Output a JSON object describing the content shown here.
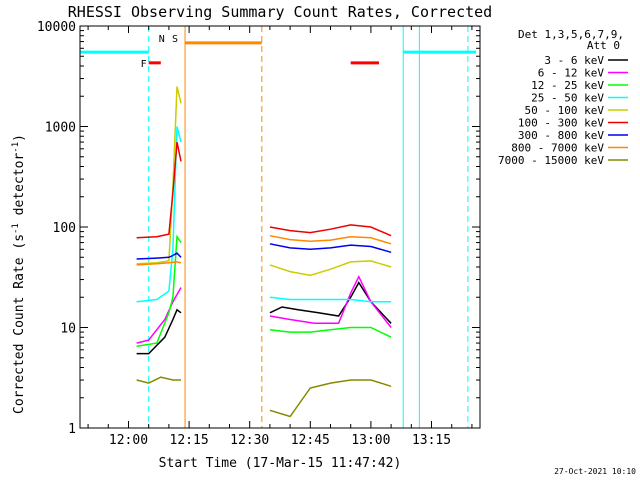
{
  "chart_data": {
    "type": "line",
    "title": "RHESSI Observing Summary Count Rates, Corrected",
    "xlabel": "Start Time (17-Mar-15 11:47:42)",
    "ylabel_prefix": "Corrected Count Rate (s",
    "ylabel_middle": " detector",
    "ylabel_suffix": ")",
    "ylabel_exp": "-1",
    "yscale": "log",
    "ylim": [
      1,
      10000
    ],
    "xlim": [
      "11:48",
      "13:27"
    ],
    "x_ticks": [
      "12:00",
      "12:15",
      "12:30",
      "12:45",
      "13:00",
      "13:15"
    ],
    "y_ticks": [
      "1",
      "10",
      "100",
      "1000",
      "10000"
    ],
    "legend_title": [
      "Det 1,3,5,6,7,9,",
      "Att 0"
    ],
    "legend_placement": "right",
    "series": [
      {
        "name": "3 - 6 keV",
        "color": "#000000",
        "segments": [
          {
            "x": [
              "12:02",
              "12:05",
              "12:09",
              "12:11",
              "12:12",
              "12:13"
            ],
            "y": [
              5.5,
              5.5,
              8,
              12,
              15,
              14
            ]
          },
          {
            "x": [
              "12:35",
              "12:38",
              "12:42",
              "12:47",
              "12:52",
              "12:55",
              "12:57",
              "13:00",
              "13:05"
            ],
            "y": [
              14,
              16,
              15,
              14,
              13,
              20,
              28,
              18,
              11
            ]
          }
        ]
      },
      {
        "name": "6 - 12 keV",
        "color": "#ff00ff",
        "segments": [
          {
            "x": [
              "12:02",
              "12:05",
              "12:09",
              "12:11",
              "12:13"
            ],
            "y": [
              7,
              7.5,
              12,
              18,
              25
            ]
          },
          {
            "x": [
              "12:35",
              "12:40",
              "12:46",
              "12:52",
              "12:55",
              "12:57",
              "13:00",
              "13:05"
            ],
            "y": [
              13,
              12,
              11,
              11,
              22,
              32,
              18,
              10
            ]
          }
        ]
      },
      {
        "name": "12 - 25 keV",
        "color": "#00ff00",
        "segments": [
          {
            "x": [
              "12:02",
              "12:07",
              "12:10",
              "12:11",
              "12:12",
              "12:13"
            ],
            "y": [
              6.5,
              7,
              14,
              20,
              80,
              70
            ]
          },
          {
            "x": [
              "12:35",
              "12:40",
              "12:45",
              "12:50",
              "12:55",
              "13:00",
              "13:05"
            ],
            "y": [
              9.5,
              9,
              9,
              9.5,
              10,
              10,
              8
            ]
          }
        ]
      },
      {
        "name": "25 - 50 keV",
        "color": "#00ffff",
        "segments": [
          {
            "x": [
              "12:02",
              "12:07",
              "12:10",
              "12:11",
              "12:12",
              "12:13"
            ],
            "y": [
              18,
              19,
              23,
              60,
              1000,
              700
            ]
          },
          {
            "x": [
              "12:35",
              "12:40",
              "12:45",
              "12:50",
              "12:55",
              "13:00",
              "13:05"
            ],
            "y": [
              20,
              19,
              19,
              19,
              19,
              18,
              18
            ]
          }
        ]
      },
      {
        "name": "50 - 100 keV",
        "color": "#cccc00",
        "segments": [
          {
            "x": [
              "12:02",
              "12:07",
              "12:10",
              "12:11",
              "12:12",
              "12:13"
            ],
            "y": [
              43,
              44,
              46,
              250,
              2500,
              1700
            ]
          },
          {
            "x": [
              "12:35",
              "12:40",
              "12:45",
              "12:50",
              "12:55",
              "13:00",
              "13:05"
            ],
            "y": [
              42,
              36,
              33,
              38,
              45,
              46,
              40
            ]
          }
        ]
      },
      {
        "name": "100 - 300 keV",
        "color": "#ee0000",
        "segments": [
          {
            "x": [
              "12:02",
              "12:07",
              "12:10",
              "12:11",
              "12:12",
              "12:13"
            ],
            "y": [
              78,
              80,
              85,
              220,
              700,
              450
            ]
          },
          {
            "x": [
              "12:35",
              "12:40",
              "12:45",
              "12:50",
              "12:55",
              "13:00",
              "13:05"
            ],
            "y": [
              100,
              92,
              88,
              95,
              105,
              100,
              82
            ]
          }
        ]
      },
      {
        "name": "300 - 800 keV",
        "color": "#0000ee",
        "segments": [
          {
            "x": [
              "12:02",
              "12:07",
              "12:10",
              "12:11",
              "12:12",
              "12:13"
            ],
            "y": [
              48,
              49,
              50,
              52,
              55,
              50
            ]
          },
          {
            "x": [
              "12:35",
              "12:40",
              "12:45",
              "12:50",
              "12:55",
              "13:00",
              "13:05"
            ],
            "y": [
              68,
              62,
              60,
              62,
              66,
              64,
              56
            ]
          }
        ]
      },
      {
        "name": "800 - 7000 keV",
        "color": "#ff8800",
        "segments": [
          {
            "x": [
              "12:02",
              "12:07",
              "12:10",
              "12:12",
              "12:13"
            ],
            "y": [
              42,
              43,
              44,
              45,
              44
            ]
          },
          {
            "x": [
              "12:35",
              "12:40",
              "12:45",
              "12:50",
              "12:55",
              "13:00",
              "13:05"
            ],
            "y": [
              82,
              75,
              72,
              74,
              80,
              78,
              68
            ]
          }
        ]
      },
      {
        "name": "7000 - 15000 keV",
        "color": "#888800",
        "segments": [
          {
            "x": [
              "12:02",
              "12:05",
              "12:08",
              "12:11",
              "12:13"
            ],
            "y": [
              3,
              2.8,
              3.2,
              3,
              3
            ]
          },
          {
            "x": [
              "12:35",
              "12:40",
              "12:45",
              "12:50",
              "12:55",
              "13:00",
              "13:05"
            ],
            "y": [
              1.5,
              1.3,
              2.5,
              2.8,
              3,
              3,
              2.6
            ]
          }
        ]
      }
    ],
    "intervals": [
      {
        "label": "",
        "color": "#00ffff",
        "level": 5500,
        "start": "11:48",
        "end": "12:05"
      },
      {
        "label": "N",
        "color": "#00ffff",
        "level": 5500,
        "start": "",
        "end": ""
      },
      {
        "label": "F",
        "color": "#ff0000",
        "level": 4300,
        "start": "12:05",
        "end": "12:08"
      },
      {
        "label": "S",
        "color": "#ff8800",
        "level": 6800,
        "start": "12:14",
        "end": "12:33"
      },
      {
        "label": "",
        "color": "#ff0000",
        "level": 4300,
        "start": "12:55",
        "end": "13:02"
      },
      {
        "label": "",
        "color": "#00ffff",
        "level": 5500,
        "start": "13:08",
        "end": "13:26"
      }
    ],
    "vlines": [
      {
        "t": "11:48",
        "color": "#00ffff",
        "style": "solid"
      },
      {
        "t": "12:05",
        "color": "#00ffff",
        "style": "dashed"
      },
      {
        "t": "12:14",
        "color": "#ff8800",
        "style": "solid"
      },
      {
        "t": "12:33",
        "color": "#ff8800",
        "style": "dashed"
      },
      {
        "t": "13:08",
        "color": "#00ffff",
        "style": "solid"
      },
      {
        "t": "13:12",
        "color": "#00ffff",
        "style": "solid"
      },
      {
        "t": "13:24",
        "color": "#00ffff",
        "style": "dashed"
      }
    ],
    "date_stamp": "27-Oct-2021 10:10"
  }
}
